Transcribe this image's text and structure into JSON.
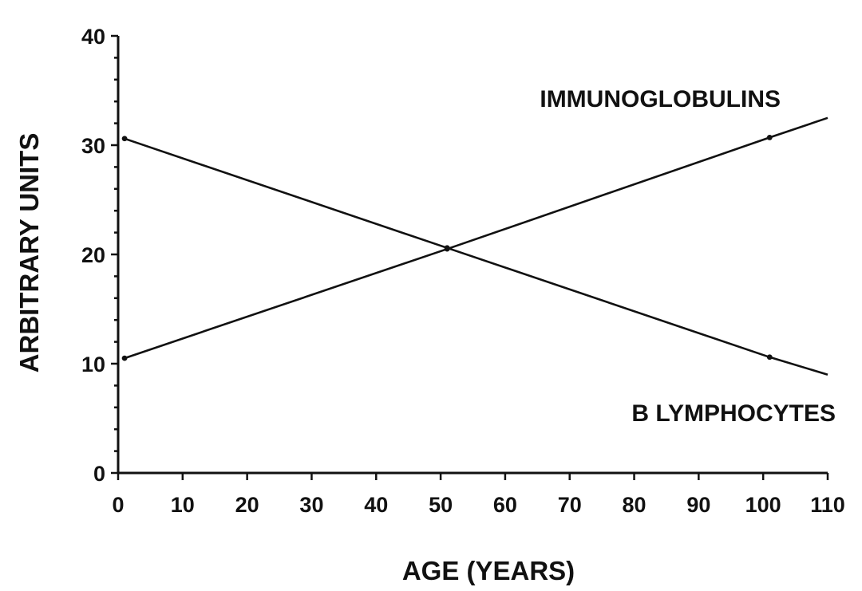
{
  "chart_data": {
    "type": "line",
    "title": "",
    "xlabel": "AGE (YEARS)",
    "ylabel": "ARBITRARY UNITS",
    "xlim": [
      0,
      110
    ],
    "ylim": [
      0,
      40
    ],
    "x_ticks": [
      0,
      10,
      20,
      30,
      40,
      50,
      60,
      70,
      80,
      90,
      100,
      110
    ],
    "y_ticks": [
      0,
      10,
      20,
      30,
      40
    ],
    "y_minor_step": 2,
    "grid": false,
    "legend": "none",
    "series": [
      {
        "name": "IMMUNOGLOBULINS",
        "x": [
          1,
          51,
          101,
          110
        ],
        "y": [
          10.5,
          20.5,
          30.7,
          32.5
        ],
        "markers_x": [
          1,
          51,
          101
        ],
        "color": "#111111"
      },
      {
        "name": "B LYMPHOCYTES",
        "x": [
          1,
          51,
          101,
          110
        ],
        "y": [
          30.6,
          20.6,
          10.6,
          9.0
        ],
        "markers_x": [
          1,
          51,
          101
        ],
        "color": "#111111"
      }
    ]
  }
}
